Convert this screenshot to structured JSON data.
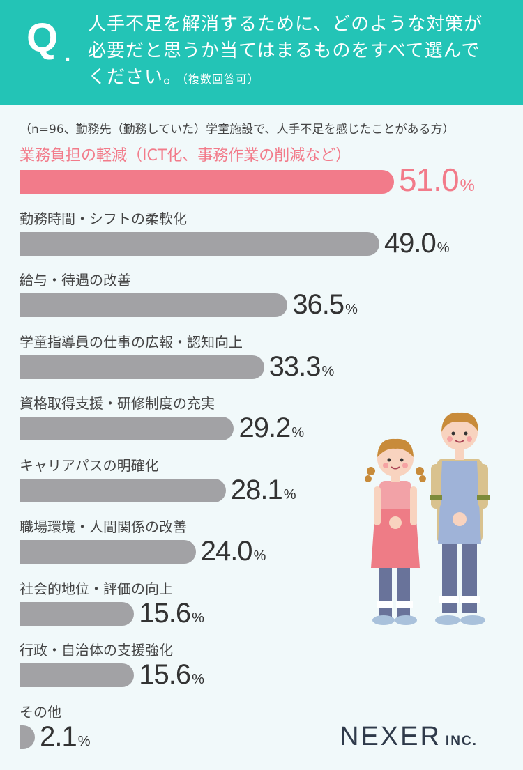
{
  "header": {
    "q_mark": "Q",
    "q_dot": ".",
    "question_lines": [
      "人手不足を解消するために、どのような対策が",
      "必要だと思うか当てはまるものをすべて選んで",
      "ください。"
    ],
    "question_note": "（複数回答可）"
  },
  "respondents": "（n=96、勤務先（勤務していた）学童施設で、人手不足を感じたことがある方）",
  "logo": {
    "brand": "NEXER",
    "suffix": "INC."
  },
  "colors": {
    "accent": "#23c4b6",
    "highlight": "#f27b8a",
    "bar": "#a2a2a5",
    "background": "#f1f9fa"
  },
  "chart_data": {
    "type": "bar",
    "orientation": "horizontal",
    "unit": "%",
    "categories": [
      "業務負担の軽減（ICT化、事務作業の削減など）",
      "勤務時間・シフトの柔軟化",
      "給与・待遇の改善",
      "学童指導員の仕事の広報・認知向上",
      "資格取得支援・研修制度の充実",
      "キャリアパスの明確化",
      "職場環境・人間関係の改善",
      "社会的地位・評価の向上",
      "行政・自治体の支援強化",
      "その他"
    ],
    "values": [
      51.0,
      49.0,
      36.5,
      33.3,
      29.2,
      28.1,
      24.0,
      15.6,
      15.6,
      2.1
    ],
    "value_labels": [
      "51.0",
      "49.0",
      "36.5",
      "33.3",
      "29.2",
      "28.1",
      "24.0",
      "15.6",
      "15.6",
      "2.1"
    ],
    "highlight_index": 0
  }
}
